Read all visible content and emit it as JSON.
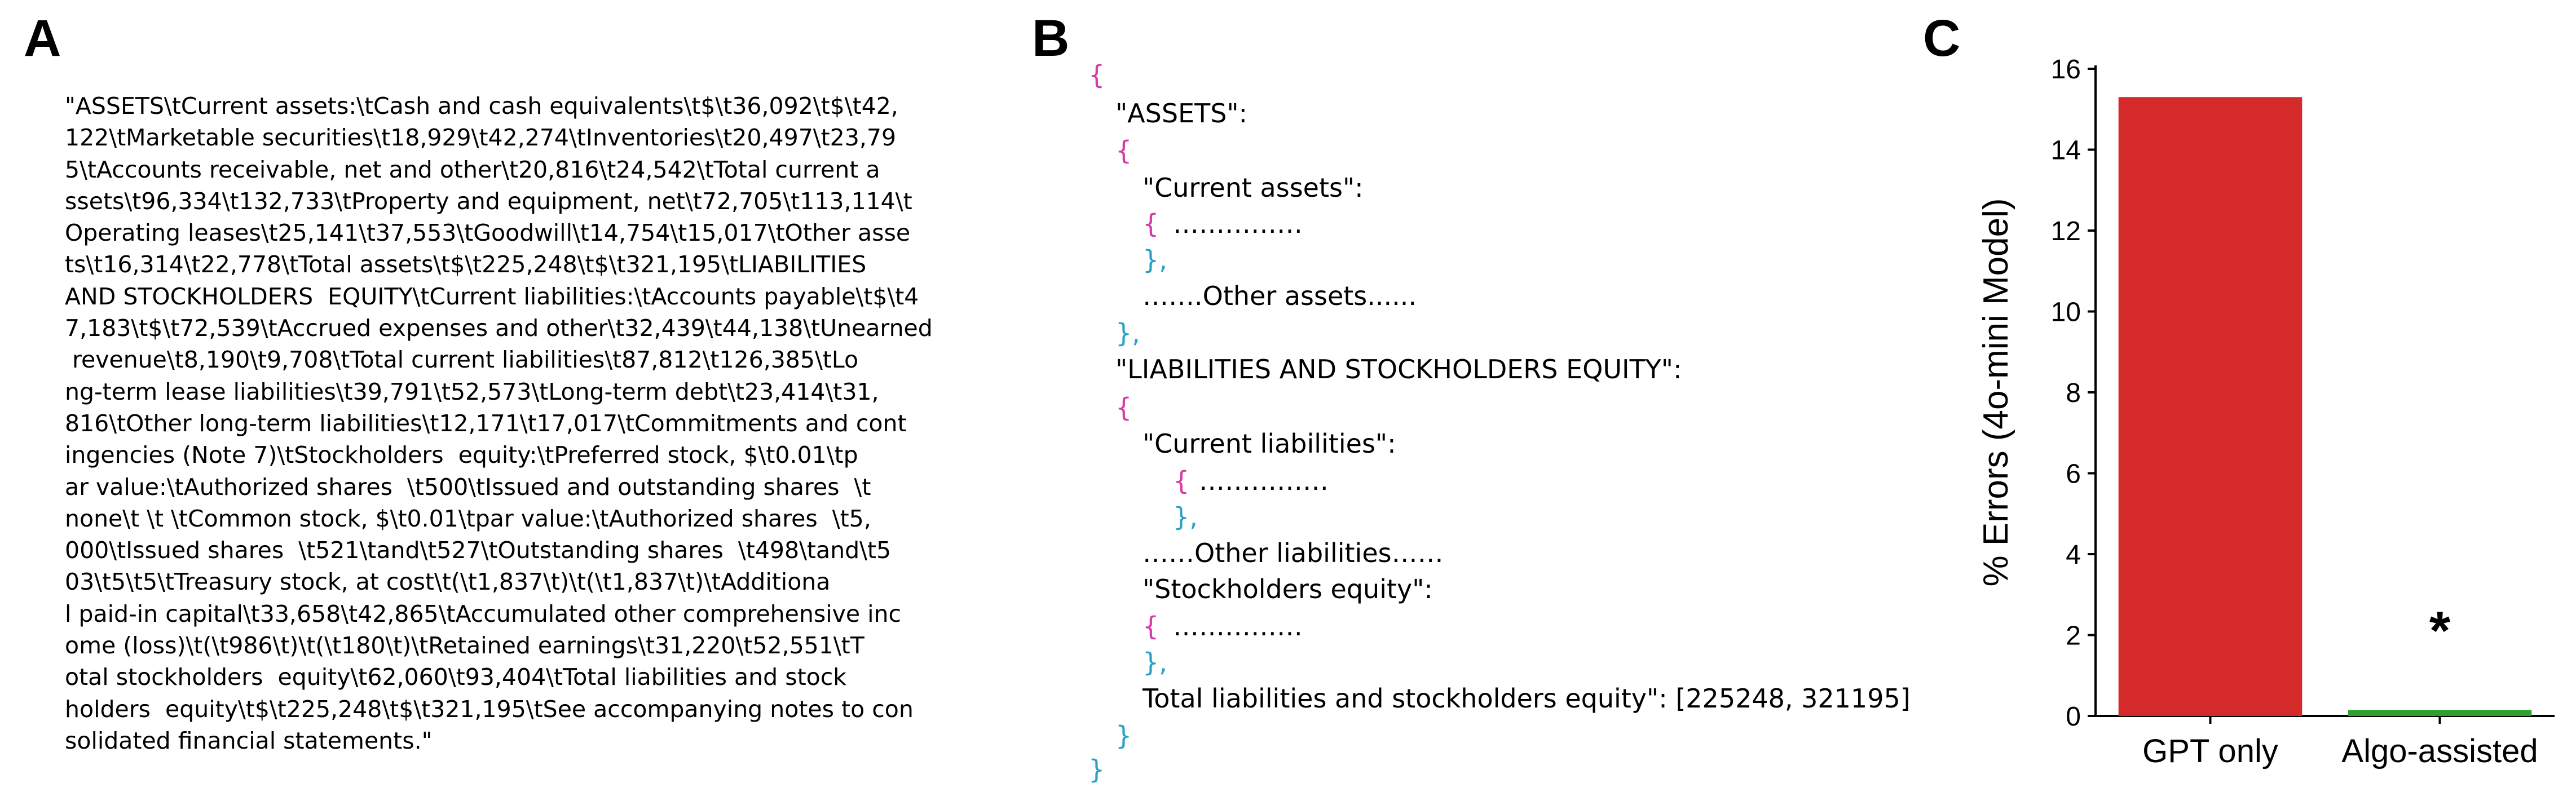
{
  "panels": {
    "a": "A",
    "b": "B",
    "c": "C"
  },
  "panel_a": {
    "lines": [
      "\"ASSETS\\tCurrent assets:\\tCash and cash equivalents\\t$\\t36,092\\t$\\t42,",
      "122\\tMarketable securities\\t18,929\\t42,274\\tInventories\\t20,497\\t23,79",
      "5\\tAccounts receivable, net and other\\t20,816\\t24,542\\tTotal current a",
      "ssets\\t96,334\\t132,733\\tProperty and equipment, net\\t72,705\\t113,114\\t",
      "Operating leases\\t25,141\\t37,553\\tGoodwill\\t14,754\\t15,017\\tOther asse",
      "ts\\t16,314\\t22,778\\tTotal assets\\t$\\t225,248\\t$\\t321,195\\tLIABILITIES",
      "AND STOCKHOLDERS  EQUITY\\tCurrent liabilities:\\tAccounts payable\\t$\\t4",
      "7,183\\t$\\t72,539\\tAccrued expenses and other\\t32,439\\t44,138\\tUnearned",
      " revenue\\t8,190\\t9,708\\tTotal current liabilities\\t87,812\\t126,385\\tLo",
      "ng-term lease liabilities\\t39,791\\t52,573\\tLong-term debt\\t23,414\\t31,",
      "816\\tOther long-term liabilities\\t12,171\\t17,017\\tCommitments and cont",
      "ingencies (Note 7)\\tStockholders  equity:\\tPreferred stock, $\\t0.01\\tp",
      "ar value:\\tAuthorized shares  \\t500\\tIssued and outstanding shares  \\t",
      "none\\t \\t \\tCommon stock, $\\t0.01\\tpar value:\\tAuthorized shares  \\t5,",
      "000\\tIssued shares  \\t521\\tand\\t527\\tOutstanding shares  \\t498\\tand\\t5",
      "03\\t5\\t5\\tTreasury stock, at cost\\t(\\t1,837\\t)\\t(\\t1,837\\t)\\tAdditiona",
      "l paid-in capital\\t33,658\\t42,865\\tAccumulated other comprehensive inc",
      "ome (loss)\\t(\\t986\\t)\\t(\\t180\\t)\\tRetained earnings\\t31,220\\t52,551\\tT",
      "otal stockholders  equity\\t62,060\\t93,404\\tTotal liabilities and stock",
      "holders  equity\\t$\\t225,248\\t$\\t321,195\\tSee accompanying notes to con",
      "solidated financial statements.\""
    ]
  },
  "panel_b": {
    "brace_open": "{",
    "brace_close": "}",
    "brace_close_comma": "},",
    "comma": ",",
    "assets_key": "\"ASSETS\":",
    "current_assets_key": "\"Current assets\":",
    "dots": "……………",
    "other_assets": "…….Other assets......",
    "liabilities_key": "\"LIABILITIES AND STOCKHOLDERS EQUITY\":",
    "current_liabilities_key": "\"Current liabilities\":",
    "other_liabilities": "……Other liabilities……",
    "stockholders_key": "\"Stockholders equity\":",
    "total_line": "Total liabilities and stockholders equity\": [225248, 321195]"
  },
  "chart_data": {
    "type": "bar",
    "categories": [
      "GPT only",
      "Algo-assisted"
    ],
    "values": [
      15.3,
      0.15
    ],
    "colors": [
      "#d42a2a",
      "#2ea02e"
    ],
    "ylabel": "% Errors (4o-mini Model)",
    "ylim": [
      0,
      16
    ],
    "yticks": [
      0,
      2,
      4,
      6,
      8,
      10,
      12,
      14,
      16
    ],
    "annotation": "*",
    "grid": false
  }
}
